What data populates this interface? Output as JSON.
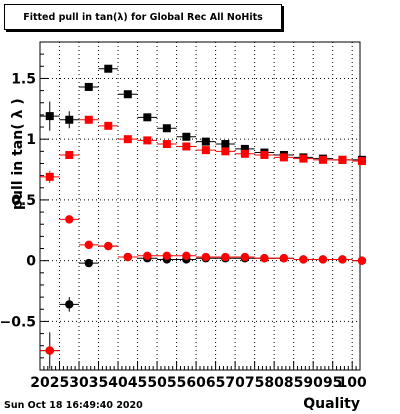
{
  "title": "Fitted pull in tan(λ) for Global Rec All NoHits",
  "footer_timestamp": "Sun Oct 18 16:49:40 2020",
  "chart_data": {
    "type": "scatter",
    "title": "Fitted pull in tan(λ) for Global Rec All NoHits",
    "xlabel": "Quality",
    "ylabel": "pull in tan( λ )",
    "xlim": [
      20,
      102
    ],
    "ylim": [
      -0.9,
      1.8
    ],
    "x_ticks": [
      20,
      25,
      30,
      35,
      40,
      45,
      50,
      55,
      60,
      65,
      70,
      75,
      80,
      85,
      90,
      95,
      100
    ],
    "y_ticks": [
      -0.5,
      0,
      0.5,
      1,
      1.5
    ],
    "y_tick_labels": [
      "−0.5",
      "0",
      "0.5",
      "1",
      "1.5"
    ],
    "grid": true,
    "series": [
      {
        "color": "#000000",
        "marker": "square",
        "x": [
          22.5,
          27.5,
          32.5,
          37.5,
          42.5,
          47.5,
          52.5,
          57.5,
          62.5,
          67.5,
          72.5,
          77.5,
          82.5,
          87.5,
          92.5,
          97.5,
          102.5
        ],
        "y": [
          1.19,
          1.16,
          1.43,
          1.58,
          1.37,
          1.18,
          1.09,
          1.02,
          0.98,
          0.96,
          0.92,
          0.89,
          0.87,
          0.85,
          0.84,
          0.83,
          0.83
        ],
        "yerr": [
          0.12,
          0.07,
          0.03,
          0.02,
          0.02,
          0.02,
          0.02,
          0.02,
          0.02,
          0.02,
          0.02,
          0.02,
          0.02,
          0.02,
          0.02,
          0.02,
          0.02
        ]
      },
      {
        "color": "#ff0000",
        "marker": "square",
        "x": [
          22.5,
          27.5,
          32.5,
          37.5,
          42.5,
          47.5,
          52.5,
          57.5,
          62.5,
          67.5,
          72.5,
          77.5,
          82.5,
          87.5,
          92.5,
          97.5,
          102.5
        ],
        "y": [
          0.69,
          0.87,
          1.16,
          1.11,
          1.0,
          0.99,
          0.96,
          0.94,
          0.91,
          0.9,
          0.88,
          0.87,
          0.85,
          0.84,
          0.83,
          0.83,
          0.82
        ],
        "yerr": [
          0.05,
          0.03,
          0.03,
          0.02,
          0.02,
          0.02,
          0.02,
          0.02,
          0.02,
          0.02,
          0.02,
          0.02,
          0.02,
          0.02,
          0.02,
          0.02,
          0.02
        ]
      },
      {
        "color": "#000000",
        "marker": "circle",
        "x": [
          22.5,
          27.5,
          32.5,
          37.5,
          42.5,
          47.5,
          52.5,
          57.5,
          62.5,
          67.5,
          72.5,
          77.5,
          82.5,
          87.5,
          92.5,
          97.5,
          102.5
        ],
        "y": [
          -0.74,
          -0.36,
          -0.02,
          0.12,
          0.03,
          0.02,
          0.01,
          0.01,
          0.02,
          0.02,
          0.02,
          0.02,
          0.02,
          0.01,
          0.01,
          0.01,
          0.0
        ],
        "yerr": [
          0.15,
          0.06,
          0.03,
          0.02,
          0.02,
          0.02,
          0.02,
          0.02,
          0.02,
          0.02,
          0.02,
          0.02,
          0.02,
          0.02,
          0.02,
          0.02,
          0.02
        ]
      },
      {
        "color": "#ff0000",
        "marker": "circle",
        "x": [
          22.5,
          27.5,
          32.5,
          37.5,
          42.5,
          47.5,
          52.5,
          57.5,
          62.5,
          67.5,
          72.5,
          77.5,
          82.5,
          87.5,
          92.5,
          97.5,
          102.5
        ],
        "y": [
          -0.74,
          0.34,
          0.13,
          0.12,
          0.03,
          0.04,
          0.04,
          0.04,
          0.03,
          0.03,
          0.03,
          0.02,
          0.02,
          0.01,
          0.01,
          0.01,
          0.0
        ],
        "yerr": [
          0.05,
          0.03,
          0.02,
          0.02,
          0.02,
          0.02,
          0.02,
          0.02,
          0.02,
          0.02,
          0.02,
          0.02,
          0.02,
          0.02,
          0.02,
          0.02,
          0.02
        ]
      }
    ]
  }
}
